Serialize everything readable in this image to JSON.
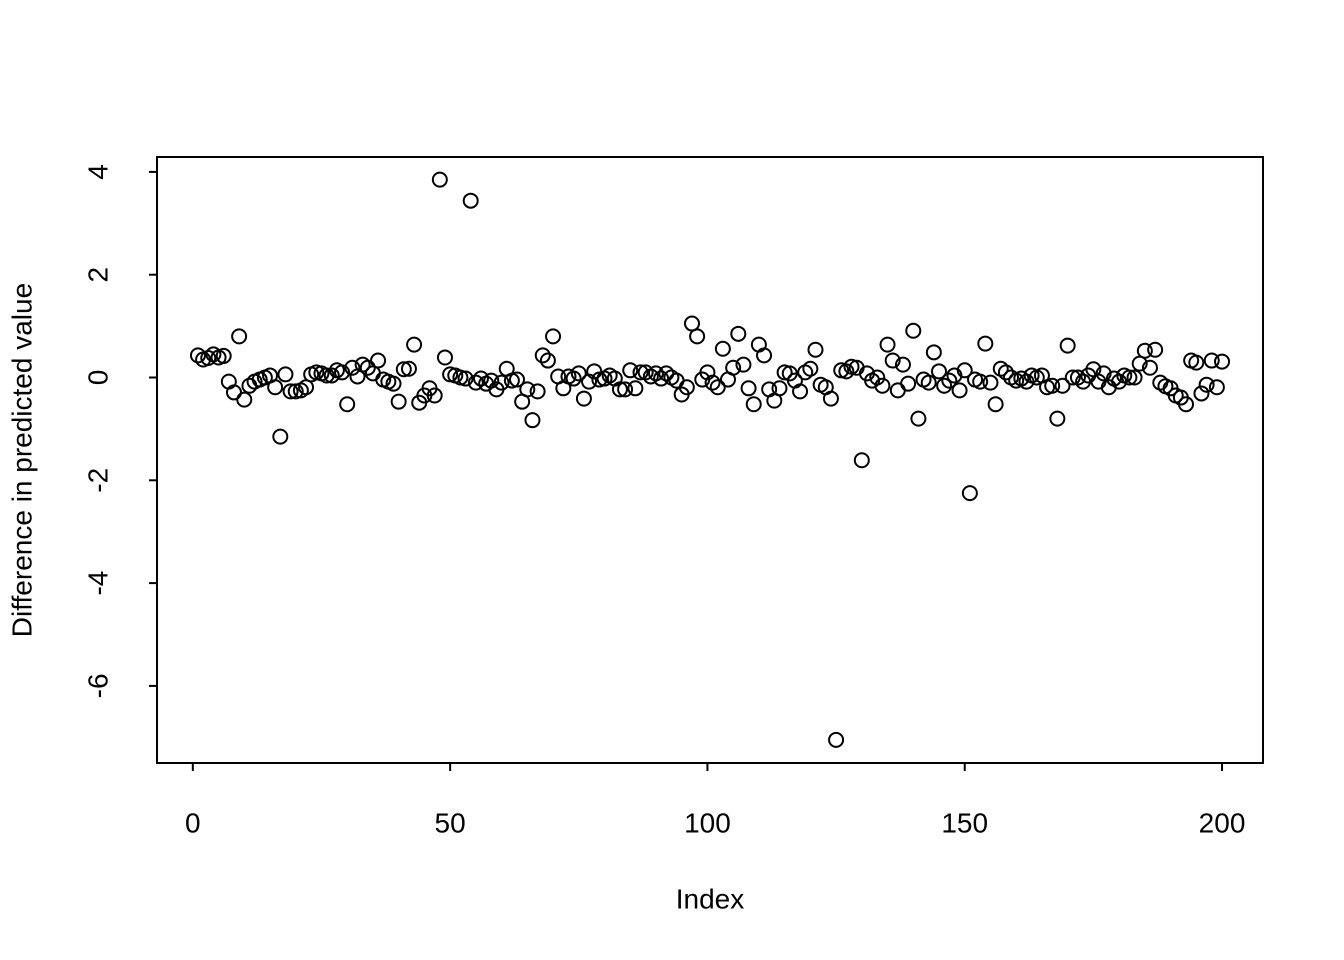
{
  "chart_data": {
    "type": "scatter",
    "xlabel": "Index",
    "ylabel": "Difference in predicted value",
    "color": "#000000",
    "xlim": [
      -6.96,
      207.96
    ],
    "ylim": [
      -7.5,
      4.29
    ],
    "xticks": [
      0,
      50,
      100,
      150,
      200
    ],
    "yticks": [
      -6,
      -4,
      -2,
      0,
      2,
      4
    ],
    "x": [
      1,
      2,
      3,
      4,
      5,
      6,
      7,
      8,
      9,
      10,
      11,
      12,
      13,
      14,
      15,
      16,
      17,
      18,
      19,
      20,
      21,
      22,
      23,
      24,
      25,
      26,
      27,
      28,
      29,
      30,
      31,
      32,
      33,
      34,
      35,
      36,
      37,
      38,
      39,
      40,
      41,
      42,
      43,
      44,
      45,
      46,
      47,
      48,
      49,
      50,
      51,
      52,
      53,
      54,
      55,
      56,
      57,
      58,
      59,
      60,
      61,
      62,
      63,
      64,
      65,
      66,
      67,
      68,
      69,
      70,
      71,
      72,
      73,
      74,
      75,
      76,
      77,
      78,
      79,
      80,
      81,
      82,
      83,
      84,
      85,
      86,
      87,
      88,
      89,
      90,
      91,
      92,
      93,
      94,
      95,
      96,
      97,
      98,
      99,
      100,
      101,
      102,
      103,
      104,
      105,
      106,
      107,
      108,
      109,
      110,
      111,
      112,
      113,
      114,
      115,
      116,
      117,
      118,
      119,
      120,
      121,
      122,
      123,
      124,
      125,
      126,
      127,
      128,
      129,
      130,
      131,
      132,
      133,
      134,
      135,
      136,
      137,
      138,
      139,
      140,
      141,
      142,
      143,
      144,
      145,
      146,
      147,
      148,
      149,
      150,
      151,
      152,
      153,
      154,
      155,
      156,
      157,
      158,
      159,
      160,
      161,
      162,
      163,
      164,
      165,
      166,
      167,
      168,
      169,
      170,
      171,
      172,
      173,
      174,
      175,
      176,
      177,
      178,
      179,
      180,
      181,
      182,
      183,
      184,
      185,
      186,
      187,
      188,
      189,
      190,
      191,
      192,
      193,
      194,
      195,
      196,
      197,
      198,
      199,
      200
    ],
    "values": [
      0.43,
      0.35,
      0.38,
      0.45,
      0.39,
      0.42,
      -0.08,
      -0.29,
      0.8,
      -0.43,
      -0.16,
      -0.08,
      -0.04,
      0,
      0.04,
      -0.19,
      -1.15,
      0.06,
      -0.27,
      -0.27,
      -0.25,
      -0.19,
      0.06,
      0.1,
      0.08,
      0.04,
      0.04,
      0.14,
      0.1,
      -0.52,
      0.19,
      0.02,
      0.25,
      0.19,
      0.08,
      0.33,
      -0.04,
      -0.08,
      -0.12,
      -0.47,
      0.16,
      0.17,
      0.64,
      -0.49,
      -0.35,
      -0.21,
      -0.35,
      3.85,
      0.39,
      0.06,
      0.04,
      0,
      -0.02,
      3.44,
      -0.1,
      -0.02,
      -0.12,
      -0.06,
      -0.23,
      -0.1,
      0.17,
      -0.06,
      -0.04,
      -0.47,
      -0.23,
      -0.83,
      -0.27,
      0.43,
      0.33,
      0.8,
      0.02,
      -0.21,
      0.02,
      -0.02,
      0.08,
      -0.41,
      -0.08,
      0.12,
      -0.04,
      -0.02,
      0.04,
      -0.02,
      -0.23,
      -0.23,
      0.14,
      -0.21,
      0.1,
      0.1,
      0.02,
      0.08,
      -0.02,
      0.08,
      0,
      -0.06,
      -0.33,
      -0.19,
      1.05,
      0.8,
      -0.04,
      0.1,
      -0.1,
      -0.19,
      0.56,
      -0.04,
      0.19,
      0.85,
      0.25,
      -0.21,
      -0.52,
      0.64,
      0.43,
      -0.23,
      -0.45,
      -0.21,
      0.1,
      0.08,
      -0.06,
      -0.27,
      0.1,
      0.17,
      0.54,
      -0.14,
      -0.19,
      -0.41,
      -7.05,
      0.14,
      0.12,
      0.21,
      0.19,
      -1.61,
      0.08,
      -0.06,
      0,
      -0.16,
      0.64,
      0.33,
      -0.25,
      0.25,
      -0.12,
      0.91,
      -0.8,
      -0.04,
      -0.1,
      0.49,
      0.12,
      -0.16,
      -0.06,
      0.04,
      -0.25,
      0.14,
      -2.25,
      -0.04,
      -0.08,
      0.66,
      -0.1,
      -0.52,
      0.17,
      0.1,
      0,
      -0.06,
      -0.02,
      -0.08,
      0.04,
      0,
      0.04,
      -0.19,
      -0.16,
      -0.8,
      -0.16,
      0.62,
      0,
      0,
      -0.08,
      0.04,
      0.16,
      -0.08,
      0.08,
      -0.19,
      -0.02,
      -0.08,
      0.04,
      0,
      0,
      0.27,
      0.52,
      0.19,
      0.54,
      -0.1,
      -0.17,
      -0.21,
      -0.35,
      -0.39,
      -0.52,
      0.33,
      0.29,
      -0.31,
      -0.14,
      0.33,
      -0.19,
      0.31
    ]
  }
}
